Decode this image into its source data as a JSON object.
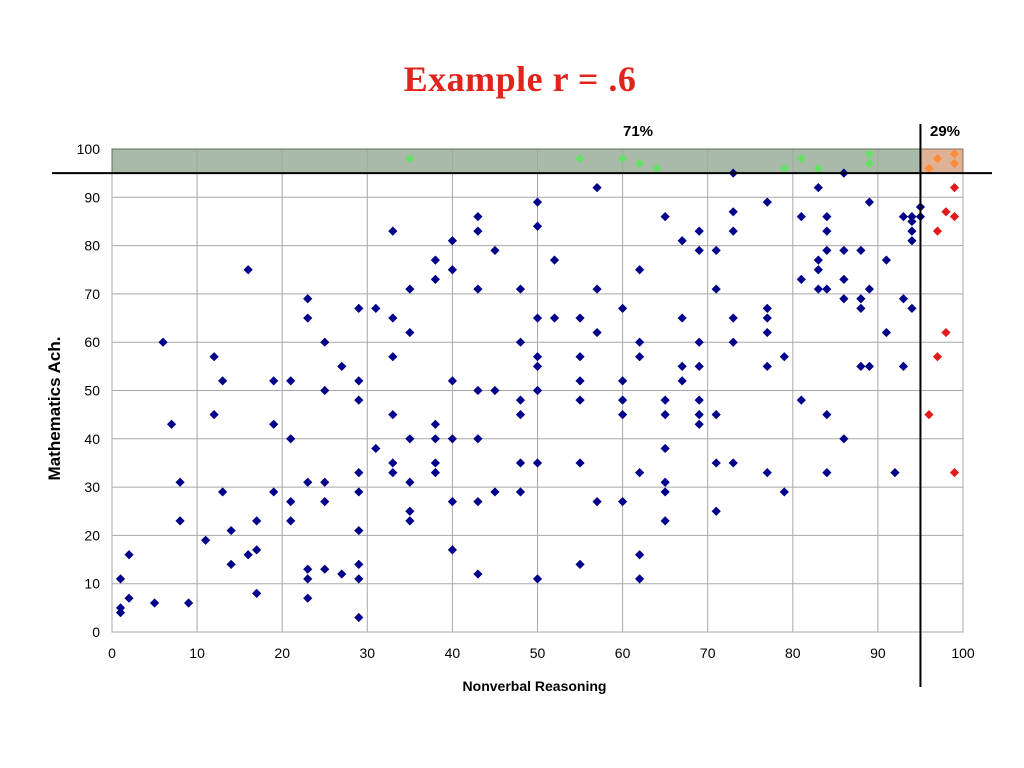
{
  "slide": {
    "title": "Example r = .6"
  },
  "chart_data": {
    "type": "scatter",
    "title": "Example r = .6",
    "xlabel": "Nonverbal Reasoning",
    "ylabel": "Mathematics Ach.",
    "xlim": [
      0,
      100
    ],
    "ylim": [
      0,
      100
    ],
    "xticks": [
      0,
      10,
      20,
      30,
      40,
      50,
      60,
      70,
      80,
      90,
      100
    ],
    "yticks": [
      0,
      10,
      20,
      30,
      40,
      50,
      60,
      70,
      80,
      90,
      100
    ],
    "grid": true,
    "cutoffs": {
      "x": 95,
      "y": 95
    },
    "region_labels": {
      "left": "71%",
      "right": "29%"
    },
    "colors": {
      "main": "#00008b",
      "top_left": "#66e066",
      "top_right": "#ff8c3a",
      "right": "#e01b1b",
      "top_band": "#9aae9a",
      "corner": "#dba98a"
    },
    "series": [
      {
        "color": "#00008b",
        "points": [
          [
            1,
            4
          ],
          [
            1,
            5
          ],
          [
            1,
            11
          ],
          [
            2,
            7
          ],
          [
            2,
            16
          ],
          [
            5,
            6
          ],
          [
            6,
            60
          ],
          [
            7,
            43
          ],
          [
            8,
            23
          ],
          [
            8,
            31
          ],
          [
            9,
            6
          ],
          [
            11,
            19
          ],
          [
            12,
            45
          ],
          [
            12,
            57
          ],
          [
            13,
            29
          ],
          [
            13,
            52
          ],
          [
            14,
            14
          ],
          [
            14,
            21
          ],
          [
            16,
            16
          ],
          [
            16,
            75
          ],
          [
            17,
            8
          ],
          [
            17,
            17
          ],
          [
            17,
            23
          ],
          [
            19,
            29
          ],
          [
            19,
            43
          ],
          [
            19,
            52
          ],
          [
            21,
            23
          ],
          [
            21,
            27
          ],
          [
            21,
            40
          ],
          [
            21,
            52
          ],
          [
            23,
            7
          ],
          [
            23,
            11
          ],
          [
            23,
            13
          ],
          [
            23,
            31
          ],
          [
            23,
            65
          ],
          [
            23,
            69
          ],
          [
            25,
            13
          ],
          [
            25,
            27
          ],
          [
            25,
            31
          ],
          [
            25,
            50
          ],
          [
            25,
            60
          ],
          [
            27,
            12
          ],
          [
            27,
            55
          ],
          [
            29,
            3
          ],
          [
            29,
            11
          ],
          [
            29,
            14
          ],
          [
            29,
            21
          ],
          [
            29,
            29
          ],
          [
            29,
            33
          ],
          [
            29,
            48
          ],
          [
            29,
            52
          ],
          [
            29,
            67
          ],
          [
            31,
            38
          ],
          [
            31,
            67
          ],
          [
            33,
            33
          ],
          [
            33,
            35
          ],
          [
            33,
            45
          ],
          [
            33,
            57
          ],
          [
            33,
            65
          ],
          [
            33,
            83
          ],
          [
            35,
            23
          ],
          [
            35,
            25
          ],
          [
            35,
            31
          ],
          [
            35,
            40
          ],
          [
            35,
            62
          ],
          [
            35,
            71
          ],
          [
            38,
            33
          ],
          [
            38,
            35
          ],
          [
            38,
            40
          ],
          [
            38,
            43
          ],
          [
            38,
            73
          ],
          [
            38,
            77
          ],
          [
            40,
            17
          ],
          [
            40,
            27
          ],
          [
            40,
            40
          ],
          [
            40,
            52
          ],
          [
            40,
            75
          ],
          [
            40,
            81
          ],
          [
            43,
            12
          ],
          [
            43,
            27
          ],
          [
            43,
            40
          ],
          [
            43,
            50
          ],
          [
            43,
            71
          ],
          [
            43,
            83
          ],
          [
            43,
            86
          ],
          [
            45,
            29
          ],
          [
            45,
            50
          ],
          [
            45,
            79
          ],
          [
            48,
            29
          ],
          [
            48,
            35
          ],
          [
            48,
            45
          ],
          [
            48,
            48
          ],
          [
            48,
            60
          ],
          [
            48,
            71
          ],
          [
            50,
            11
          ],
          [
            50,
            35
          ],
          [
            50,
            50
          ],
          [
            50,
            55
          ],
          [
            50,
            57
          ],
          [
            50,
            65
          ],
          [
            50,
            84
          ],
          [
            50,
            89
          ],
          [
            52,
            65
          ],
          [
            52,
            77
          ],
          [
            55,
            14
          ],
          [
            55,
            35
          ],
          [
            55,
            48
          ],
          [
            55,
            52
          ],
          [
            55,
            57
          ],
          [
            55,
            65
          ],
          [
            57,
            27
          ],
          [
            57,
            62
          ],
          [
            57,
            71
          ],
          [
            57,
            92
          ],
          [
            60,
            27
          ],
          [
            60,
            45
          ],
          [
            60,
            48
          ],
          [
            60,
            52
          ],
          [
            60,
            67
          ],
          [
            62,
            11
          ],
          [
            62,
            16
          ],
          [
            62,
            33
          ],
          [
            62,
            57
          ],
          [
            62,
            60
          ],
          [
            62,
            75
          ],
          [
            65,
            23
          ],
          [
            65,
            29
          ],
          [
            65,
            31
          ],
          [
            65,
            38
          ],
          [
            65,
            45
          ],
          [
            65,
            48
          ],
          [
            65,
            86
          ],
          [
            67,
            52
          ],
          [
            67,
            55
          ],
          [
            67,
            65
          ],
          [
            67,
            81
          ],
          [
            69,
            43
          ],
          [
            69,
            45
          ],
          [
            69,
            48
          ],
          [
            69,
            55
          ],
          [
            69,
            60
          ],
          [
            69,
            79
          ],
          [
            69,
            83
          ],
          [
            71,
            25
          ],
          [
            71,
            35
          ],
          [
            71,
            45
          ],
          [
            71,
            71
          ],
          [
            71,
            79
          ],
          [
            73,
            35
          ],
          [
            73,
            60
          ],
          [
            73,
            65
          ],
          [
            73,
            83
          ],
          [
            73,
            87
          ],
          [
            73,
            95
          ],
          [
            77,
            33
          ],
          [
            77,
            55
          ],
          [
            77,
            62
          ],
          [
            77,
            65
          ],
          [
            77,
            67
          ],
          [
            77,
            89
          ],
          [
            79,
            29
          ],
          [
            79,
            57
          ],
          [
            81,
            48
          ],
          [
            81,
            73
          ],
          [
            81,
            86
          ],
          [
            83,
            71
          ],
          [
            83,
            75
          ],
          [
            83,
            77
          ],
          [
            83,
            92
          ],
          [
            84,
            33
          ],
          [
            84,
            45
          ],
          [
            84,
            71
          ],
          [
            84,
            79
          ],
          [
            84,
            83
          ],
          [
            84,
            86
          ],
          [
            86,
            40
          ],
          [
            86,
            69
          ],
          [
            86,
            73
          ],
          [
            86,
            79
          ],
          [
            86,
            95
          ],
          [
            88,
            55
          ],
          [
            88,
            67
          ],
          [
            88,
            69
          ],
          [
            88,
            79
          ],
          [
            89,
            55
          ],
          [
            89,
            71
          ],
          [
            89,
            89
          ],
          [
            91,
            62
          ],
          [
            91,
            77
          ],
          [
            92,
            33
          ],
          [
            93,
            55
          ],
          [
            93,
            69
          ],
          [
            93,
            86
          ],
          [
            94,
            67
          ],
          [
            94,
            81
          ],
          [
            94,
            83
          ],
          [
            94,
            85
          ],
          [
            94,
            86
          ],
          [
            95,
            86
          ],
          [
            95,
            88
          ]
        ]
      },
      {
        "color": "#66e066",
        "points": [
          [
            35,
            98
          ],
          [
            55,
            98
          ],
          [
            60,
            98
          ],
          [
            62,
            97
          ],
          [
            64,
            96
          ],
          [
            79,
            96
          ],
          [
            81,
            98
          ],
          [
            83,
            96
          ],
          [
            89,
            97
          ],
          [
            89,
            99
          ]
        ]
      },
      {
        "color": "#ff8c3a",
        "points": [
          [
            96,
            96
          ],
          [
            97,
            98
          ],
          [
            99,
            97
          ],
          [
            99,
            99
          ]
        ]
      },
      {
        "color": "#e01b1b",
        "points": [
          [
            96,
            45
          ],
          [
            97,
            57
          ],
          [
            97,
            83
          ],
          [
            98,
            62
          ],
          [
            98,
            87
          ],
          [
            99,
            33
          ],
          [
            99,
            86
          ],
          [
            99,
            92
          ]
        ]
      }
    ]
  }
}
